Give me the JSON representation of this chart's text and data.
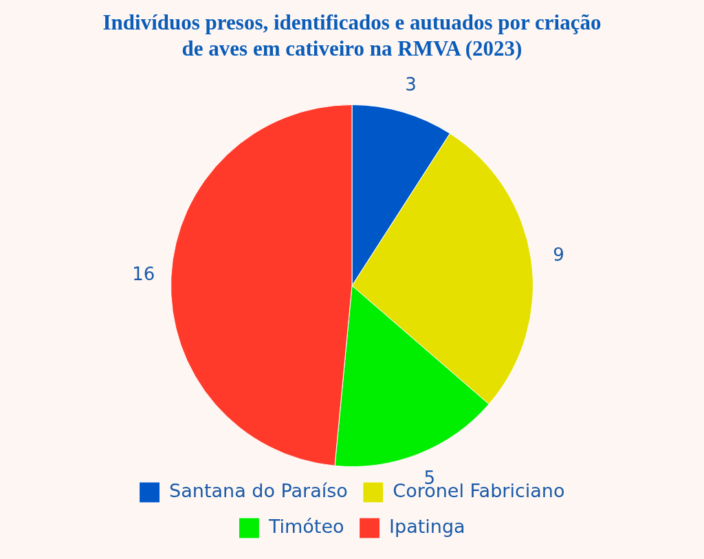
{
  "chart_data": {
    "type": "pie",
    "title": "Indivíduos presos, identificados e autuados por criação de aves em cativeiro na RMVA (2023)",
    "categories": [
      "Santana do Paraíso",
      "Coronel Fabriciano",
      "Timóteo",
      "Ipatinga"
    ],
    "values": [
      3,
      9,
      5,
      16
    ],
    "colors": [
      "#0057c8",
      "#e6e000",
      "#00ee00",
      "#ff3a2a"
    ],
    "data_labels": true,
    "legend": "bottom"
  }
}
